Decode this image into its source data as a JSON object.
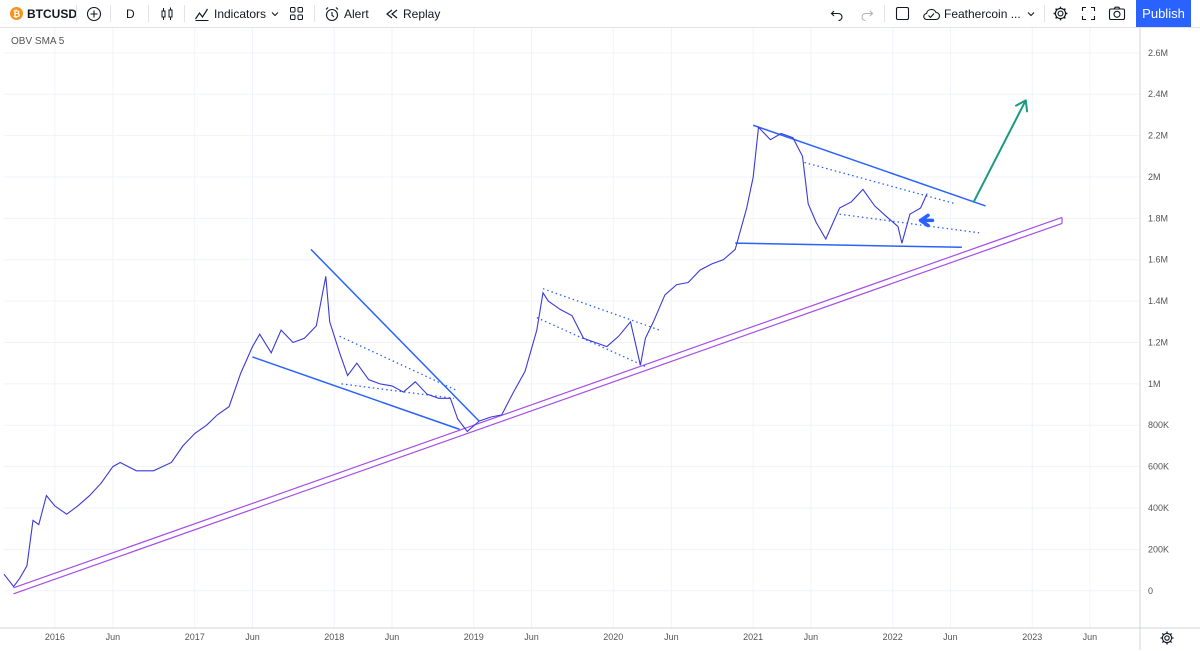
{
  "toolbar": {
    "symbol": "BTCUSD",
    "interval": "D",
    "indicators_label": "Indicators",
    "alert_label": "Alert",
    "replay_label": "Replay",
    "layout_name": "Feathercoin ...",
    "publish_label": "Publish"
  },
  "colors": {
    "price": "#3a3ad8",
    "trendline": "#2962ff",
    "support_channel": "#a64de6",
    "arrow_up": "#1a9a80",
    "arrow_left": "#2962ff"
  },
  "chart_data": {
    "type": "line",
    "title": "",
    "indicator_label": "OBV SMA 5",
    "y_axis": {
      "ticks": [
        0,
        200000,
        400000,
        600000,
        800000,
        1000000,
        1200000,
        1400000,
        1600000,
        1800000,
        2000000,
        2200000,
        2400000,
        2600000
      ],
      "tick_labels": [
        "0",
        "200K",
        "400K",
        "600K",
        "800K",
        "1M",
        "1.2M",
        "1.4M",
        "1.6M",
        "1.8M",
        "2M",
        "2.2M",
        "2.4M",
        "2.6M"
      ],
      "range": [
        -180000,
        2720000
      ]
    },
    "x_axis": {
      "tick_labels": [
        "2016",
        "Jun",
        "2017",
        "Jun",
        "2018",
        "Jun",
        "2019",
        "Jun",
        "2020",
        "Jun",
        "2021",
        "Jun",
        "2022",
        "Jun",
        "2023",
        "Jun"
      ],
      "tick_dates": [
        "2016-01-01",
        "2016-06-01",
        "2017-01-01",
        "2017-06-01",
        "2018-01-01",
        "2018-06-01",
        "2019-01-01",
        "2019-06-01",
        "2020-01-01",
        "2020-06-01",
        "2021-01-01",
        "2021-06-01",
        "2022-01-01",
        "2022-06-01",
        "2023-01-01",
        "2023-06-01"
      ],
      "range": [
        "2015-08-21",
        "2023-10-10"
      ]
    },
    "grid": true,
    "series": [
      {
        "points": [
          [
            "2015-08-21",
            80000
          ],
          [
            "2015-09-15",
            20000
          ],
          [
            "2015-10-01",
            60000
          ],
          [
            "2015-10-20",
            120000
          ],
          [
            "2015-11-05",
            340000
          ],
          [
            "2015-11-20",
            320000
          ],
          [
            "2015-12-10",
            460000
          ],
          [
            "2016-01-01",
            410000
          ],
          [
            "2016-02-01",
            370000
          ],
          [
            "2016-03-01",
            410000
          ],
          [
            "2016-04-01",
            460000
          ],
          [
            "2016-05-01",
            520000
          ],
          [
            "2016-06-01",
            600000
          ],
          [
            "2016-06-20",
            620000
          ],
          [
            "2016-08-01",
            580000
          ],
          [
            "2016-09-15",
            580000
          ],
          [
            "2016-11-01",
            620000
          ],
          [
            "2016-12-01",
            700000
          ],
          [
            "2017-01-01",
            760000
          ],
          [
            "2017-02-01",
            800000
          ],
          [
            "2017-03-01",
            850000
          ],
          [
            "2017-04-01",
            890000
          ],
          [
            "2017-05-01",
            1050000
          ],
          [
            "2017-06-01",
            1180000
          ],
          [
            "2017-06-20",
            1240000
          ],
          [
            "2017-07-20",
            1150000
          ],
          [
            "2017-08-15",
            1260000
          ],
          [
            "2017-09-15",
            1200000
          ],
          [
            "2017-10-15",
            1220000
          ],
          [
            "2017-11-15",
            1280000
          ],
          [
            "2017-12-10",
            1520000
          ],
          [
            "2017-12-20",
            1300000
          ],
          [
            "2018-01-15",
            1150000
          ],
          [
            "2018-02-05",
            1040000
          ],
          [
            "2018-03-01",
            1100000
          ],
          [
            "2018-04-01",
            1020000
          ],
          [
            "2018-05-01",
            1000000
          ],
          [
            "2018-06-01",
            990000
          ],
          [
            "2018-07-01",
            960000
          ],
          [
            "2018-08-01",
            1010000
          ],
          [
            "2018-09-01",
            950000
          ],
          [
            "2018-10-01",
            930000
          ],
          [
            "2018-11-01",
            930000
          ],
          [
            "2018-11-20",
            830000
          ],
          [
            "2018-12-15",
            770000
          ],
          [
            "2019-01-15",
            820000
          ],
          [
            "2019-02-15",
            840000
          ],
          [
            "2019-03-15",
            850000
          ],
          [
            "2019-04-15",
            960000
          ],
          [
            "2019-05-15",
            1060000
          ],
          [
            "2019-06-15",
            1260000
          ],
          [
            "2019-07-01",
            1440000
          ],
          [
            "2019-07-15",
            1400000
          ],
          [
            "2019-08-15",
            1360000
          ],
          [
            "2019-09-15",
            1330000
          ],
          [
            "2019-10-15",
            1220000
          ],
          [
            "2019-11-15",
            1200000
          ],
          [
            "2019-12-15",
            1180000
          ],
          [
            "2020-01-15",
            1230000
          ],
          [
            "2020-02-15",
            1300000
          ],
          [
            "2020-03-12",
            1090000
          ],
          [
            "2020-03-25",
            1220000
          ],
          [
            "2020-04-15",
            1300000
          ],
          [
            "2020-05-15",
            1430000
          ],
          [
            "2020-06-15",
            1480000
          ],
          [
            "2020-07-15",
            1490000
          ],
          [
            "2020-08-15",
            1550000
          ],
          [
            "2020-09-15",
            1580000
          ],
          [
            "2020-10-15",
            1600000
          ],
          [
            "2020-11-15",
            1650000
          ],
          [
            "2020-12-15",
            1850000
          ],
          [
            "2021-01-01",
            2000000
          ],
          [
            "2021-01-15",
            2240000
          ],
          [
            "2021-02-15",
            2180000
          ],
          [
            "2021-03-15",
            2210000
          ],
          [
            "2021-04-15",
            2190000
          ],
          [
            "2021-05-10",
            2100000
          ],
          [
            "2021-05-25",
            1870000
          ],
          [
            "2021-06-15",
            1780000
          ],
          [
            "2021-07-10",
            1700000
          ],
          [
            "2021-08-15",
            1850000
          ],
          [
            "2021-09-15",
            1880000
          ],
          [
            "2021-10-15",
            1940000
          ],
          [
            "2021-11-15",
            1860000
          ],
          [
            "2021-12-15",
            1810000
          ],
          [
            "2022-01-15",
            1760000
          ],
          [
            "2022-01-25",
            1680000
          ],
          [
            "2022-02-15",
            1820000
          ],
          [
            "2022-03-15",
            1850000
          ],
          [
            "2022-04-01",
            1920000
          ]
        ]
      }
    ],
    "annotations": [
      {
        "type": "line",
        "from": [
          "2017-06-01",
          1130000
        ],
        "to": [
          "2018-11-25",
          780000
        ]
      },
      {
        "type": "line",
        "from": [
          "2017-11-01",
          1650000
        ],
        "to": [
          "2019-01-15",
          820000
        ]
      },
      {
        "type": "dotted",
        "from": [
          "2018-01-15",
          1230000
        ],
        "to": [
          "2018-11-15",
          970000
        ]
      },
      {
        "type": "dotted",
        "from": [
          "2018-01-20",
          1000000
        ],
        "to": [
          "2018-11-10",
          930000
        ]
      },
      {
        "type": "dotted",
        "from": [
          "2019-07-01",
          1460000
        ],
        "to": [
          "2020-05-01",
          1260000
        ]
      },
      {
        "type": "dotted",
        "from": [
          "2019-06-15",
          1320000
        ],
        "to": [
          "2020-03-30",
          1080000
        ]
      },
      {
        "type": "line",
        "from": [
          "2021-01-01",
          2250000
        ],
        "to": [
          "2022-09-01",
          1860000
        ]
      },
      {
        "type": "line",
        "from": [
          "2020-11-15",
          1680000
        ],
        "to": [
          "2022-07-01",
          1660000
        ]
      },
      {
        "type": "dotted",
        "from": [
          "2021-05-15",
          2070000
        ],
        "to": [
          "2022-06-15",
          1870000
        ]
      },
      {
        "type": "dotted",
        "from": [
          "2021-08-15",
          1820000
        ],
        "to": [
          "2022-08-15",
          1730000
        ]
      },
      {
        "type": "channel",
        "from": [
          "2015-09-15",
          0
        ],
        "to": [
          "2023-03-20",
          1790000
        ]
      },
      {
        "type": "arrow",
        "direction": "up",
        "from": [
          "2022-08-01",
          1880000
        ],
        "to": [
          "2022-12-15",
          2370000
        ]
      },
      {
        "type": "arrow",
        "direction": "left",
        "from": [
          "2022-04-15",
          1790000
        ],
        "to": [
          "2022-03-15",
          1790000
        ]
      }
    ]
  }
}
